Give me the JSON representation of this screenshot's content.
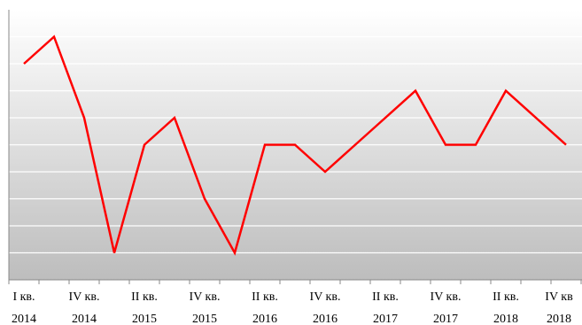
{
  "chart_data": {
    "type": "line",
    "categories": [
      "I кв. 2014",
      null,
      "IV кв. 2014",
      null,
      "II кв. 2015",
      null,
      "IV кв. 2015",
      null,
      "II кв. 2016",
      null,
      "IV кв. 2016",
      null,
      "II кв. 2017",
      null,
      "IV кв. 2017",
      null,
      "II кв. 2018",
      null,
      "IV кв 2018"
    ],
    "values": [
      8,
      9,
      6,
      1,
      5,
      6,
      3,
      1,
      5,
      5,
      4,
      5,
      6,
      7,
      5,
      5,
      7,
      6,
      5
    ],
    "color": "#ff0000",
    "ylim": [
      0,
      10
    ],
    "yticks": [
      1,
      2,
      3,
      4,
      5,
      6,
      7,
      8,
      9
    ],
    "grid": true
  }
}
